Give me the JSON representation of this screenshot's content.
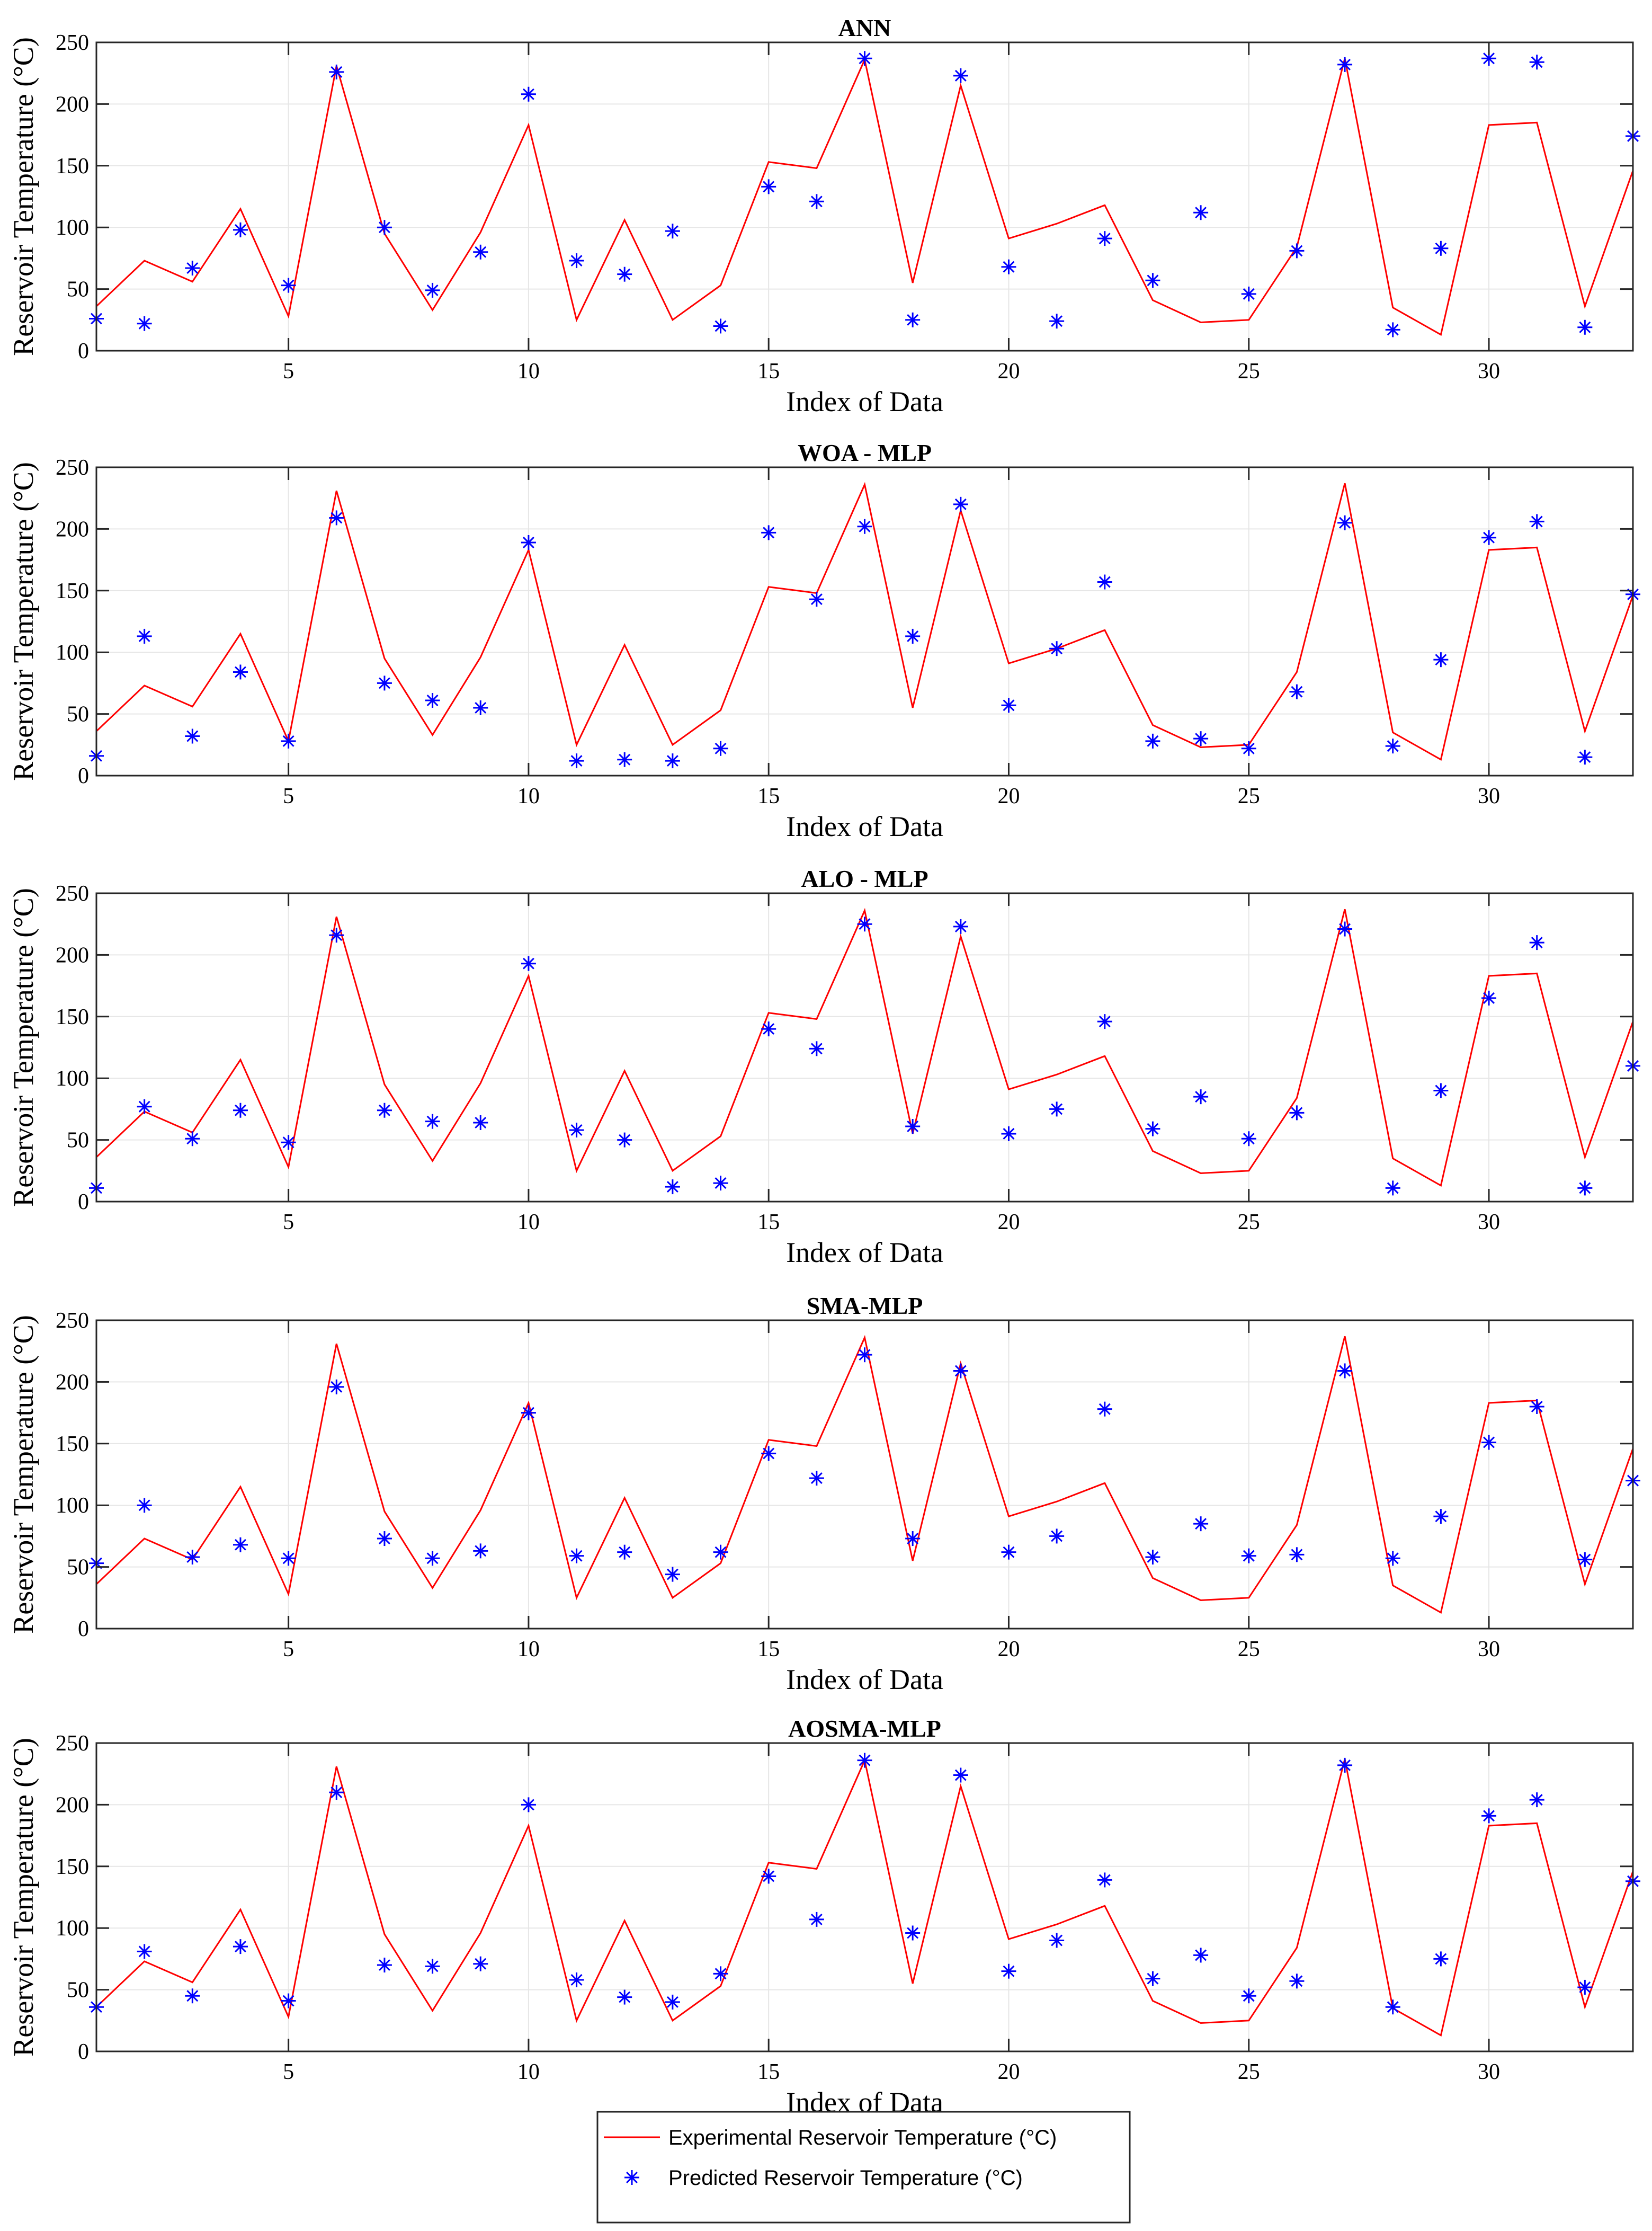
{
  "chart_data": [
    {
      "type": "line",
      "title": "ANN",
      "xlabel": "Index of Data",
      "ylabel": "Reservoir Temperature (°C)",
      "xlim": [
        1,
        33
      ],
      "ylim": [
        0,
        250
      ],
      "xticks": [
        5,
        10,
        15,
        20,
        25,
        30
      ],
      "yticks": [
        0,
        50,
        100,
        150,
        200,
        250
      ],
      "grid": true,
      "x": [
        1,
        2,
        3,
        4,
        5,
        6,
        7,
        8,
        9,
        10,
        11,
        12,
        13,
        14,
        15,
        16,
        17,
        18,
        19,
        20,
        21,
        22,
        23,
        24,
        25,
        26,
        27,
        28,
        29,
        30,
        31,
        32,
        33
      ],
      "series": [
        {
          "name": "Experimental Reservoir Temperature (°C)",
          "style": "line",
          "values": [
            36,
            73,
            56,
            115,
            28,
            231,
            95,
            33,
            96,
            183,
            25,
            106,
            25,
            53,
            153,
            148,
            236,
            55,
            215,
            91,
            103,
            118,
            41,
            23,
            25,
            84,
            237,
            35,
            13,
            183,
            185,
            36,
            146
          ]
        },
        {
          "name": "Predicted Reservoir Temperature (°C)",
          "style": "marker",
          "values": [
            26,
            22,
            67,
            98,
            53,
            226,
            100,
            49,
            80,
            208,
            73,
            62,
            97,
            20,
            133,
            121,
            237,
            25,
            223,
            68,
            24,
            91,
            57,
            112,
            46,
            81,
            232,
            17,
            83,
            237,
            234,
            19,
            174
          ]
        }
      ]
    },
    {
      "type": "line",
      "title": "WOA - MLP",
      "xlabel": "Index of Data",
      "ylabel": "Reservoir Temperature (°C)",
      "xlim": [
        1,
        33
      ],
      "ylim": [
        0,
        250
      ],
      "xticks": [
        5,
        10,
        15,
        20,
        25,
        30
      ],
      "yticks": [
        0,
        50,
        100,
        150,
        200,
        250
      ],
      "grid": true,
      "x": [
        1,
        2,
        3,
        4,
        5,
        6,
        7,
        8,
        9,
        10,
        11,
        12,
        13,
        14,
        15,
        16,
        17,
        18,
        19,
        20,
        21,
        22,
        23,
        24,
        25,
        26,
        27,
        28,
        29,
        30,
        31,
        32,
        33
      ],
      "series": [
        {
          "name": "Experimental Reservoir Temperature (°C)",
          "style": "line",
          "values": [
            36,
            73,
            56,
            115,
            28,
            231,
            95,
            33,
            96,
            183,
            25,
            106,
            25,
            53,
            153,
            148,
            236,
            55,
            215,
            91,
            103,
            118,
            41,
            23,
            25,
            84,
            237,
            35,
            13,
            183,
            185,
            36,
            146
          ]
        },
        {
          "name": "Predicted Reservoir Temperature (°C)",
          "style": "marker",
          "values": [
            16,
            113,
            32,
            84,
            28,
            209,
            75,
            61,
            55,
            189,
            12,
            13,
            12,
            22,
            197,
            143,
            202,
            113,
            220,
            57,
            103,
            157,
            28,
            30,
            22,
            68,
            205,
            24,
            94,
            193,
            206,
            15,
            147
          ]
        }
      ]
    },
    {
      "type": "line",
      "title": "ALO - MLP",
      "xlabel": "Index of Data",
      "ylabel": "Reservoir Temperature (°C)",
      "xlim": [
        1,
        33
      ],
      "ylim": [
        0,
        250
      ],
      "xticks": [
        5,
        10,
        15,
        20,
        25,
        30
      ],
      "yticks": [
        0,
        50,
        100,
        150,
        200,
        250
      ],
      "grid": true,
      "x": [
        1,
        2,
        3,
        4,
        5,
        6,
        7,
        8,
        9,
        10,
        11,
        12,
        13,
        14,
        15,
        16,
        17,
        18,
        19,
        20,
        21,
        22,
        23,
        24,
        25,
        26,
        27,
        28,
        29,
        30,
        31,
        32,
        33
      ],
      "series": [
        {
          "name": "Experimental Reservoir Temperature (°C)",
          "style": "line",
          "values": [
            36,
            73,
            56,
            115,
            28,
            231,
            95,
            33,
            96,
            183,
            25,
            106,
            25,
            53,
            153,
            148,
            236,
            55,
            215,
            91,
            103,
            118,
            41,
            23,
            25,
            84,
            237,
            35,
            13,
            183,
            185,
            36,
            146
          ]
        },
        {
          "name": "Predicted Reservoir Temperature (°C)",
          "style": "marker",
          "values": [
            11,
            77,
            51,
            74,
            48,
            216,
            74,
            65,
            64,
            193,
            58,
            50,
            12,
            15,
            140,
            124,
            225,
            61,
            223,
            55,
            75,
            146,
            59,
            85,
            51,
            72,
            221,
            11,
            90,
            165,
            210,
            11,
            110
          ]
        }
      ]
    },
    {
      "type": "line",
      "title": "SMA-MLP",
      "xlabel": "Index of Data",
      "ylabel": "Reservoir Temperature (°C)",
      "xlim": [
        1,
        33
      ],
      "ylim": [
        0,
        250
      ],
      "xticks": [
        5,
        10,
        15,
        20,
        25,
        30
      ],
      "yticks": [
        0,
        50,
        100,
        150,
        200,
        250
      ],
      "grid": true,
      "x": [
        1,
        2,
        3,
        4,
        5,
        6,
        7,
        8,
        9,
        10,
        11,
        12,
        13,
        14,
        15,
        16,
        17,
        18,
        19,
        20,
        21,
        22,
        23,
        24,
        25,
        26,
        27,
        28,
        29,
        30,
        31,
        32,
        33
      ],
      "series": [
        {
          "name": "Experimental Reservoir Temperature (°C)",
          "style": "line",
          "values": [
            36,
            73,
            56,
            115,
            28,
            231,
            95,
            33,
            96,
            183,
            25,
            106,
            25,
            53,
            153,
            148,
            236,
            55,
            215,
            91,
            103,
            118,
            41,
            23,
            25,
            84,
            237,
            35,
            13,
            183,
            185,
            36,
            146
          ]
        },
        {
          "name": "Predicted Reservoir Temperature (°C)",
          "style": "marker",
          "values": [
            53,
            100,
            58,
            68,
            57,
            196,
            73,
            57,
            63,
            175,
            59,
            62,
            44,
            62,
            142,
            122,
            222,
            73,
            209,
            62,
            75,
            178,
            58,
            85,
            59,
            60,
            209,
            57,
            91,
            151,
            180,
            56,
            120
          ]
        }
      ]
    },
    {
      "type": "line",
      "title": "AOSMA-MLP",
      "xlabel": "Index of Data",
      "ylabel": "Reservoir Temperature (°C)",
      "xlim": [
        1,
        33
      ],
      "ylim": [
        0,
        250
      ],
      "xticks": [
        5,
        10,
        15,
        20,
        25,
        30
      ],
      "yticks": [
        0,
        50,
        100,
        150,
        200,
        250
      ],
      "grid": true,
      "x": [
        1,
        2,
        3,
        4,
        5,
        6,
        7,
        8,
        9,
        10,
        11,
        12,
        13,
        14,
        15,
        16,
        17,
        18,
        19,
        20,
        21,
        22,
        23,
        24,
        25,
        26,
        27,
        28,
        29,
        30,
        31,
        32,
        33
      ],
      "series": [
        {
          "name": "Experimental Reservoir Temperature (°C)",
          "style": "line",
          "values": [
            36,
            73,
            56,
            115,
            28,
            231,
            95,
            33,
            96,
            183,
            25,
            106,
            25,
            53,
            153,
            148,
            236,
            55,
            215,
            91,
            103,
            118,
            41,
            23,
            25,
            84,
            237,
            35,
            13,
            183,
            185,
            36,
            146
          ]
        },
        {
          "name": "Predicted Reservoir Temperature (°C)",
          "style": "marker",
          "values": [
            36,
            81,
            45,
            85,
            41,
            210,
            70,
            69,
            71,
            200,
            58,
            44,
            40,
            63,
            142,
            107,
            236,
            96,
            224,
            65,
            90,
            139,
            59,
            78,
            45,
            57,
            232,
            36,
            75,
            191,
            204,
            52,
            138
          ]
        }
      ]
    }
  ],
  "legend": {
    "position": "bottom-center",
    "entries": [
      {
        "label": "Experimental Reservoir Temperature (°C)",
        "color": "#ff0000",
        "style": "line"
      },
      {
        "label": "Predicted Reservoir Temperature (°C)",
        "color": "#0000ff",
        "style": "marker"
      }
    ]
  },
  "colors": {
    "experimental": "#ff0000",
    "predicted": "#0000ff",
    "grid": "#e6e6e6",
    "axis": "#262626"
  }
}
